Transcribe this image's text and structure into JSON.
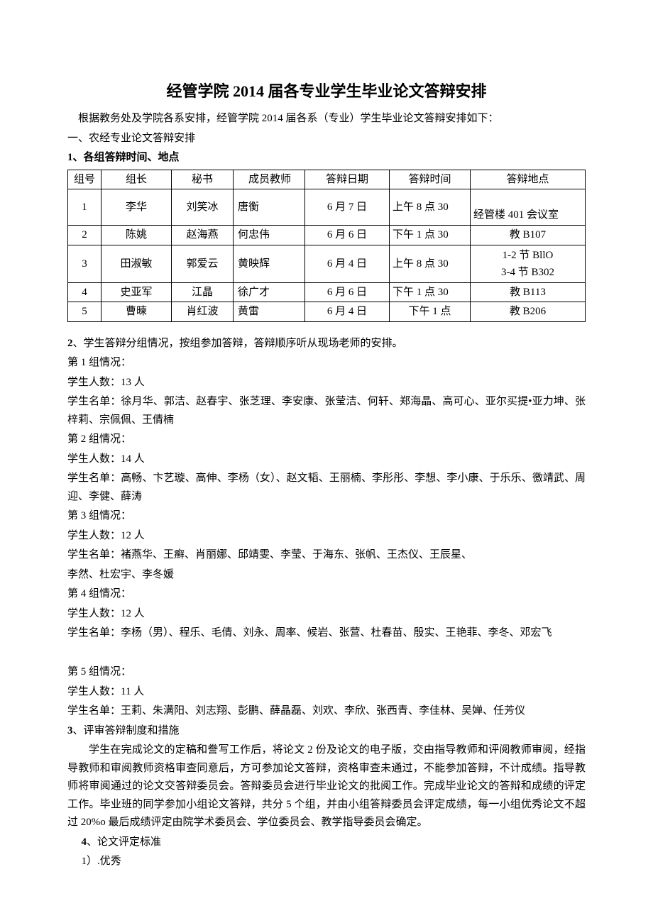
{
  "title": "经管学院 2014 届各专业学生毕业论文答辩安排",
  "intro": "根据教务处及学院各系安排，经管学院 2014 届各系（专业）学生毕业论文答辩安排如下：",
  "sec1": "一、农经专业论文答辩安排",
  "sub1": "1、各组答辩时间、地点",
  "table": {
    "headers": [
      "组号",
      "组长",
      "秘书",
      "成员教师",
      "答辩日期",
      "答辩时间",
      "答辩地点"
    ],
    "rows": [
      {
        "id": "1",
        "leader": "李华",
        "sec": "刘笑冰",
        "mem": "唐衡",
        "date": "6 月 7 日",
        "time": "上午 8 点 30",
        "loc": "经管楼 401 会议室"
      },
      {
        "id": "2",
        "leader": "陈姚",
        "sec": "赵海燕",
        "mem": "何忠伟",
        "date": "6 月 6 日",
        "time": "下午 1 点 30",
        "loc": "教 B107"
      },
      {
        "id": "3",
        "leader": "田淑敏",
        "sec": "郭爱云",
        "mem": "黄映辉",
        "date": "6 月 4 日",
        "time": "上午 8 点 30",
        "loc": "1-2 节 BllO\n3-4 节 B302"
      },
      {
        "id": "4",
        "leader": "史亚军",
        "sec": "江晶",
        "mem": "徐广才",
        "date": "6 月 6 日",
        "time": "下午 1 点 30",
        "loc": "教 B113"
      },
      {
        "id": "5",
        "leader": "曹暕",
        "sec": "肖红波",
        "mem": "黄雷",
        "date": "6 月 4 日",
        "time": "下午 1 点",
        "loc": "教 B206"
      }
    ]
  },
  "sub2": "2、学生答辩分组情况，按组参加答辩，答辩顺序听从现场老师的安排。",
  "groups": [
    {
      "h": "第 1 组情况：",
      "count": "学生人数：13 人",
      "list": "学生名单：徐月华、郭洁、赵春宇、张芝理、李安康、张莹洁、何轩、郑海晶、高可心、亚尔买提•亚力坤、张梓莉、宗佩佩、王倩楠"
    },
    {
      "h": "第 2 组情况：",
      "count": "学生人数：14 人",
      "list": "学生名单：高畅、卞艺璇、高伸、李杨（女）、赵文韬、王丽楠、李彤彤、李想、李小康、于乐乐、徼靖武、周迎、李健、薛涛"
    },
    {
      "h": "第 3 组情况：",
      "count": "学生人数：12 人",
      "list": "学生名单：褚燕华、王癣、肖丽娜、邱靖雯、李莹、于海东、张帆、王杰仪、王辰星、",
      "list2": "李然、杜宏宇、李冬媛"
    },
    {
      "h": "第 4 组情况：",
      "count": "学生人数：12 人",
      "list": "学生名单：李杨（男）、程乐、毛倩、刘永、周率、候岩、张营、杜春苗、殷实、王艳菲、李冬、邓宏飞"
    },
    {
      "h": "第 5 组情况：",
      "count": "学生人数：11 人",
      "list": "学生名单：王莉、朱满阳、刘志翔、彭鹏、薛晶磊、刘欢、李欣、张西青、李佳林、吴婵、任芳仪"
    }
  ],
  "sub3": "3、评审答辩制度和措施",
  "para3": "学生在完成论文的定稿和誊写工作后，将论文 2 份及论文的电子版，交由指导教师和评阅教师审阅，经指导教师和审阅教师资格审查同意后，方可参加论文答辩，资格审查未通过，不能参加答辩，不计成绩。指导教师将审阅通过的论文交答辩委员会。答辩委员会进行毕业论文的批阅工作。完成毕业论文的答辩和成绩的评定工作。毕业班的同学参加小组论文答辩，共分 5 个组，并由小组答辩委员会评定成绩，每一小组优秀论文不超过 20%o 最后成绩评定由院学术委员会、学位委员会、教学指导委员会确定。",
  "sub4": "4、论文评定标准",
  "sub4_1": "1）.优秀"
}
